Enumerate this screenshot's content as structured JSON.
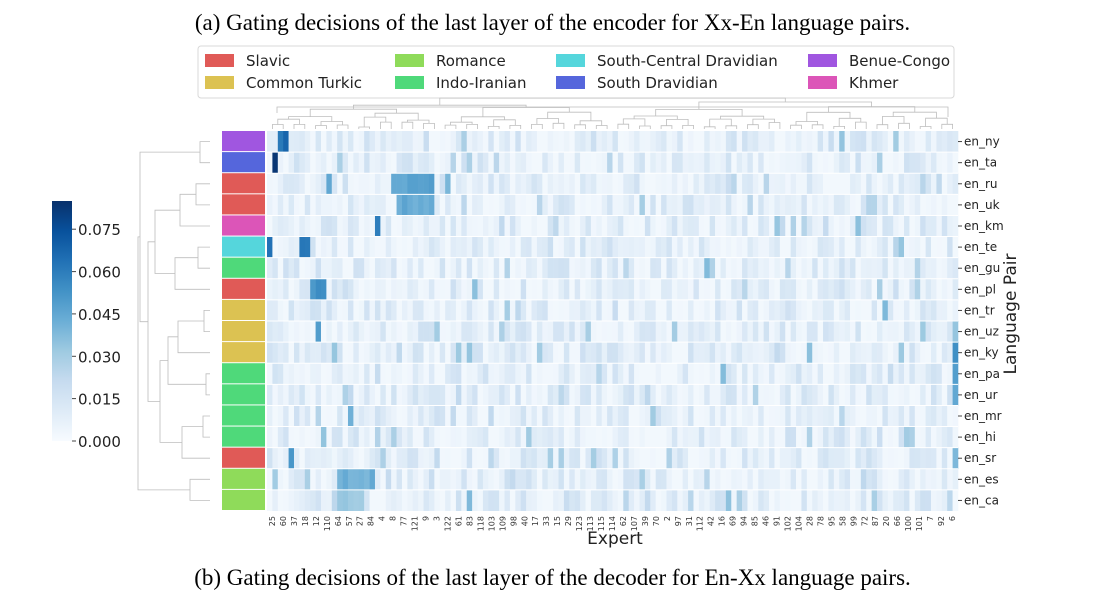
{
  "caption_top": "(a) Gating decisions of the last layer of the encoder for Xx-En language pairs.",
  "caption_bottom": "(b) Gating decisions of the last layer of the decoder for En-Xx language pairs.",
  "legend": [
    {
      "label": "Slavic",
      "color": "#e05a57"
    },
    {
      "label": "Common Turkic",
      "color": "#dcc252"
    },
    {
      "label": "Romance",
      "color": "#8fdb5a"
    },
    {
      "label": "Indo-Iranian",
      "color": "#4fd97a"
    },
    {
      "label": "South-Central Dravidian",
      "color": "#55d6dc"
    },
    {
      "label": "South Dravidian",
      "color": "#5566dc"
    },
    {
      "label": "Benue-Congo",
      "color": "#a056e0"
    },
    {
      "label": "Khmer",
      "color": "#dc55b8"
    }
  ],
  "chart_data": {
    "type": "heatmap",
    "xlabel": "Expert",
    "ylabel": "Language Pair",
    "rows": [
      "en_ny",
      "en_ta",
      "en_ru",
      "en_uk",
      "en_km",
      "en_te",
      "en_gu",
      "en_pl",
      "en_tr",
      "en_uz",
      "en_ky",
      "en_pa",
      "en_ur",
      "en_mr",
      "en_hi",
      "en_sr",
      "en_es",
      "en_ca"
    ],
    "row_families": [
      "Benue-Congo",
      "South Dravidian",
      "Slavic",
      "Slavic",
      "Khmer",
      "South-Central Dravidian",
      "Indo-Iranian",
      "Slavic",
      "Common Turkic",
      "Common Turkic",
      "Common Turkic",
      "Indo-Iranian",
      "Indo-Iranian",
      "Indo-Iranian",
      "Indo-Iranian",
      "Slavic",
      "Romance",
      "Romance"
    ],
    "x_tick_labels": [
      "25",
      "60",
      "37",
      "18",
      "12",
      "110",
      "64",
      "57",
      "27",
      "84",
      "4",
      "8",
      "77",
      "121",
      "9",
      "3",
      "122",
      "61",
      "83",
      "118",
      "103",
      "109",
      "98",
      "40",
      "17",
      "33",
      "15",
      "29",
      "123",
      "113",
      "115",
      "114",
      "62",
      "107",
      "39",
      "70",
      "2",
      "97",
      "31",
      "112",
      "42",
      "16",
      "69",
      "94",
      "85",
      "46",
      "91",
      "102",
      "104",
      "28",
      "78",
      "95",
      "58",
      "99",
      "72",
      "87",
      "20",
      "66",
      "100",
      "101",
      "7",
      "92",
      "6"
    ],
    "colorbar": {
      "min": 0.0,
      "max": 0.085,
      "ticks": [
        "0.000",
        "0.015",
        "0.030",
        "0.045",
        "0.060",
        "0.075"
      ]
    },
    "n_experts": 128,
    "hotspots": [
      {
        "row": "en_ny",
        "experts": [
          2,
          3
        ],
        "value": 0.07
      },
      {
        "row": "en_ta",
        "experts": [
          1
        ],
        "value": 0.085
      },
      {
        "row": "en_ru",
        "experts": [
          11,
          23,
          24,
          25,
          26,
          27,
          28,
          29,
          30
        ],
        "value": 0.05
      },
      {
        "row": "en_uk",
        "experts": [
          24,
          25,
          26,
          27,
          28,
          29,
          30
        ],
        "value": 0.048
      },
      {
        "row": "en_km",
        "experts": [
          20
        ],
        "value": 0.06
      },
      {
        "row": "en_te",
        "experts": [
          0,
          6,
          7
        ],
        "value": 0.065
      },
      {
        "row": "en_pl",
        "experts": [
          8,
          9,
          10
        ],
        "value": 0.055
      },
      {
        "row": "en_uz",
        "experts": [
          9
        ],
        "value": 0.05
      },
      {
        "row": "en_ky",
        "experts": [
          127
        ],
        "value": 0.06
      },
      {
        "row": "en_pa",
        "experts": [
          127
        ],
        "value": 0.05
      },
      {
        "row": "en_ur",
        "experts": [
          127
        ],
        "value": 0.045
      },
      {
        "row": "en_sr",
        "experts": [
          4
        ],
        "value": 0.06
      },
      {
        "row": "en_es",
        "experts": [
          13,
          14,
          15,
          16,
          17,
          18,
          19
        ],
        "value": 0.045
      },
      {
        "row": "en_ca",
        "experts": [
          13,
          14,
          15,
          16,
          17
        ],
        "value": 0.035
      }
    ]
  }
}
